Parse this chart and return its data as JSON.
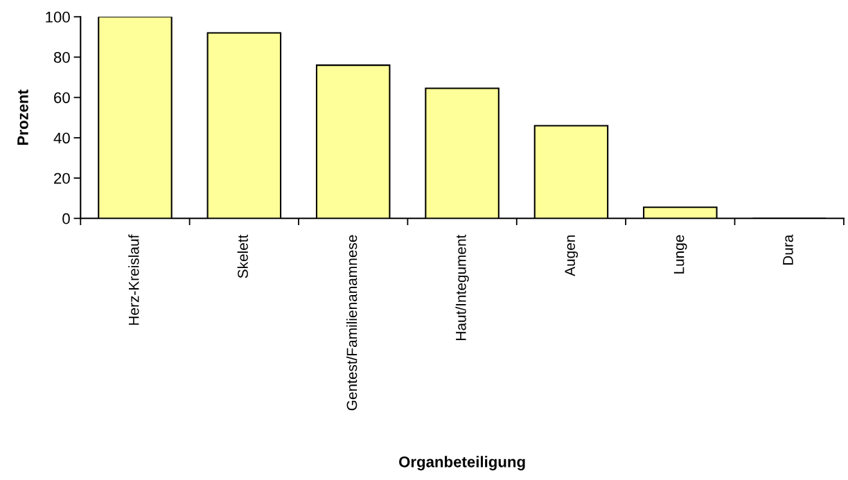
{
  "chart_data": {
    "type": "bar",
    "xlabel": "Organbeteiligung",
    "ylabel": "Prozent",
    "categories": [
      "Herz-Kreislauf",
      "Skelett",
      "Gentest/Familienanamnese",
      "Haut/Integument",
      "Augen",
      "Lunge",
      "Dura"
    ],
    "values": [
      100,
      92,
      76,
      64.5,
      46,
      5.5,
      0
    ],
    "color": "#ffff99",
    "ylim": [
      0,
      100
    ],
    "yticks": [
      0,
      20,
      40,
      60,
      80,
      100
    ],
    "grid": false,
    "legend": false
  }
}
